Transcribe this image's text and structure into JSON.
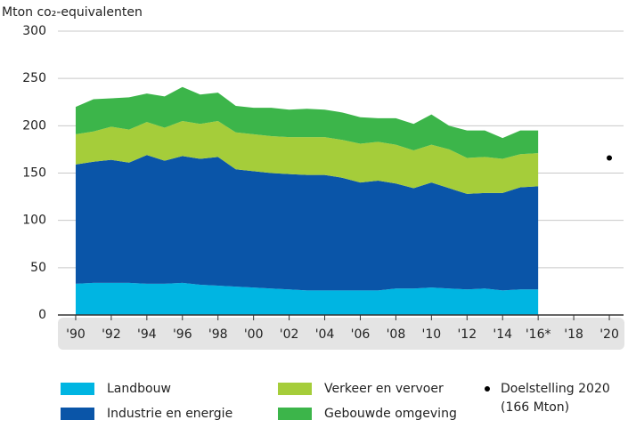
{
  "chart_data": {
    "type": "stacked_area",
    "title": "Mton co₂-equivalenten",
    "x": [
      1990,
      1991,
      1992,
      1993,
      1994,
      1995,
      1996,
      1997,
      1998,
      1999,
      2000,
      2001,
      2002,
      2003,
      2004,
      2005,
      2006,
      2007,
      2008,
      2009,
      2010,
      2011,
      2012,
      2013,
      2014,
      2015,
      2016
    ],
    "series": [
      {
        "name": "Landbouw",
        "color": "#00b5e2",
        "values": [
          33,
          34,
          34,
          34,
          33,
          33,
          34,
          32,
          31,
          30,
          29,
          28,
          27,
          26,
          26,
          26,
          26,
          26,
          28,
          28,
          29,
          28,
          27,
          28,
          26,
          27,
          27
        ]
      },
      {
        "name": "Industrie en energie",
        "color": "#0a55a8",
        "values": [
          126,
          128,
          130,
          127,
          136,
          130,
          134,
          133,
          136,
          124,
          123,
          122,
          122,
          122,
          122,
          119,
          114,
          116,
          111,
          106,
          111,
          106,
          101,
          101,
          103,
          108,
          109
        ]
      },
      {
        "name": "Verkeer en vervoer",
        "color": "#a5cd3a",
        "values": [
          32,
          32,
          35,
          35,
          35,
          35,
          37,
          37,
          38,
          39,
          39,
          39,
          39,
          40,
          40,
          40,
          41,
          41,
          41,
          40,
          40,
          41,
          38,
          38,
          36,
          35,
          35
        ]
      },
      {
        "name": "Gebouwde omgeving",
        "color": "#3cb54a",
        "values": [
          29,
          34,
          30,
          34,
          30,
          33,
          36,
          31,
          30,
          28,
          28,
          30,
          29,
          30,
          29,
          29,
          28,
          25,
          28,
          28,
          32,
          25,
          29,
          28,
          22,
          25,
          24
        ]
      }
    ],
    "target": {
      "name": "Doelstelling 2020",
      "label": "(166 Mton)",
      "x": 2020,
      "value": 166,
      "color": "#000000"
    },
    "xlim": [
      1989,
      2020.8
    ],
    "xticks": [
      {
        "value": 1990,
        "label": "'90"
      },
      {
        "value": 1992,
        "label": "'92"
      },
      {
        "value": 1994,
        "label": "'94"
      },
      {
        "value": 1996,
        "label": "'96"
      },
      {
        "value": 1998,
        "label": "'98"
      },
      {
        "value": 2000,
        "label": "'00"
      },
      {
        "value": 2002,
        "label": "'02"
      },
      {
        "value": 2004,
        "label": "'04"
      },
      {
        "value": 2006,
        "label": "'06"
      },
      {
        "value": 2008,
        "label": "'08"
      },
      {
        "value": 2010,
        "label": "'10"
      },
      {
        "value": 2012,
        "label": "'12"
      },
      {
        "value": 2014,
        "label": "'14"
      },
      {
        "value": 2016,
        "label": "'16*"
      },
      {
        "value": 2018,
        "label": "'18"
      },
      {
        "value": 2020,
        "label": "'20"
      }
    ],
    "ylim": [
      0,
      300
    ],
    "yticks": [
      0,
      50,
      100,
      150,
      200,
      250,
      300
    ],
    "grid": true
  }
}
